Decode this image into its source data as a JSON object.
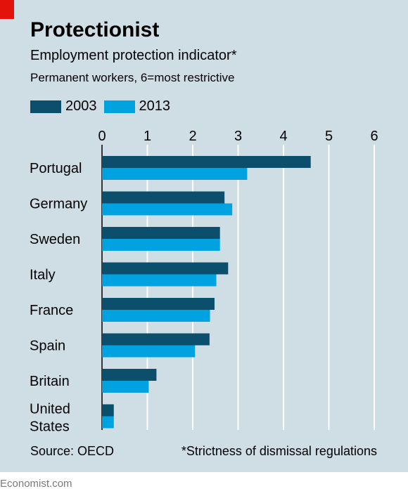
{
  "header": {
    "title": "Protectionist",
    "subtitle": "Employment protection indicator*",
    "note": "Permanent workers, 6=most restrictive"
  },
  "legend": [
    {
      "label": "2003",
      "color": "#0b4f6c"
    },
    {
      "label": "2013",
      "color": "#00a3e0"
    }
  ],
  "footer": {
    "source": "Source: OECD",
    "footnote": "*Strictness of dismissal regulations",
    "brand": "Economist.com"
  },
  "chart_data": {
    "type": "bar",
    "orientation": "horizontal",
    "categories": [
      "Portugal",
      "Germany",
      "Sweden",
      "Italy",
      "France",
      "Spain",
      "Britain",
      "United States"
    ],
    "series": [
      {
        "name": "2003",
        "color": "#0b4f6c",
        "values": [
          4.6,
          2.7,
          2.6,
          2.78,
          2.48,
          2.37,
          1.2,
          0.26
        ]
      },
      {
        "name": "2013",
        "color": "#00a3e0",
        "values": [
          3.2,
          2.87,
          2.6,
          2.52,
          2.38,
          2.05,
          1.03,
          0.26
        ]
      }
    ],
    "xlim": [
      0,
      6
    ],
    "xticks": [
      "0",
      "1",
      "2",
      "3",
      "4",
      "5",
      "6"
    ],
    "grid": true,
    "legend_position": "top-left"
  }
}
